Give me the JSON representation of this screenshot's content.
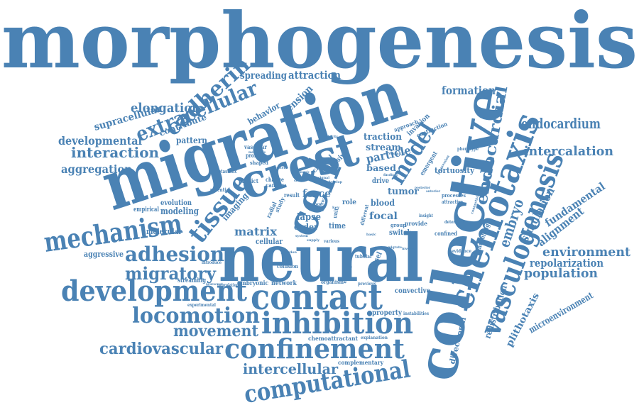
{
  "color": "#4a82b4",
  "words": {
    "morphogenesis": "morphogenesis",
    "migration": "migration",
    "neural": "neural",
    "collective": "collective",
    "crest": "crest",
    "cell": "cell",
    "contact": "contact",
    "development": "development",
    "inhibition": "inhibition",
    "chemotaxis": "chemotaxis",
    "vasculogenesis": "vasculogenesis",
    "confinement": "confinement",
    "computational": "computational",
    "mechanism": "mechanism",
    "tissue": "tissue",
    "extracellular": "extracellular",
    "cadherin": "cadherin",
    "locomotion": "locomotion",
    "adhesion": "adhesion",
    "migratory": "migratory",
    "model": "model",
    "cardiovascular": "cardiovascular",
    "movement": "movement",
    "intercellular": "intercellular",
    "interaction": "interaction",
    "developmental": "developmental",
    "aggregation": "aggregation",
    "elongation": "elongation",
    "supracellular": "supracellular",
    "endocardial": "endocardial",
    "endocardium": "endocardium",
    "intercalation": "intercalation",
    "formation": "formation",
    "environment": "environment",
    "population": "population",
    "repolarization": "repolarization",
    "embryo": "embryo",
    "simulation": "simulation",
    "alignment": "alignment",
    "fundamental": "fundamental",
    "microenvironment": "microenvironment",
    "plithotaxis": "plithotaxis",
    "redistribution": "redistribution",
    "directional": "directional",
    "spreading": "spreading",
    "attraction": "attraction",
    "tension": "tension",
    "behavior": "behavior",
    "contribute": "contribute",
    "pattern": "pattern",
    "matrix": "matrix",
    "modeling": "modeling",
    "evolution": "evolution",
    "empirical": "empirical",
    "molecular": "molecular",
    "aggressive": "aggressive",
    "imaging": "imaging",
    "force": "force",
    "particle": "particle",
    "traction": "traction",
    "stream": "stream",
    "based": "based",
    "drive": "drive",
    "tortuosity": "tortuosity",
    "blood": "blood",
    "focal": "focal",
    "tumor": "tumor",
    "lapse": "lapse",
    "order": "order",
    "time": "time",
    "switch": "switch",
    "convective": "convective",
    "property": "property",
    "chemoattractant": "chemoattractant",
    "complementary": "complementary",
    "streaming": "streaming",
    "embryonic": "embryonic",
    "network": "network",
    "vessel": "vessel",
    "cellular": "cellular",
    "adhesive": "adhesive",
    "cranial": "cranial",
    "invasion": "invasion",
    "contraction": "contraction",
    "approach": "approach",
    "vascular": "vascular",
    "promote": "promote",
    "shaped": "shaped",
    "cancer": "cancer",
    "change": "change",
    "predict": "predict",
    "potential": "potential",
    "metastatic": "metastatic",
    "result": "result",
    "study": "study",
    "radial": "radial",
    "role": "role",
    "emergent": "emergent",
    "modelling": "modelling",
    "confined": "confined",
    "provide": "provide",
    "group": "group",
    "processes": "processes",
    "attractive": "attractive",
    "collision": "collision",
    "organism": "organism",
    "tubular": "tubular",
    "instabilities": "instabilities",
    "explanation": "explanation",
    "experimental": "experimental",
    "introduce": "introduce",
    "phenotype": "phenotype",
    "determine": "determine",
    "evidence": "evidence",
    "insight": "insight",
    "component": "component",
    "exhibit": "exhibit",
    "various": "various",
    "neurulation": "neurulation",
    "previous": "previous",
    "different": "different",
    "unit": "unit",
    "junction": "junction",
    "supply": "supply",
    "finding": "finding",
    "essential": "essential",
    "develop": "develop",
    "velocity": "velocity",
    "signal": "signal",
    "select": "select",
    "range": "range",
    "single": "single",
    "real": "real",
    "posterior": "posterior",
    "progression": "progression",
    "anterior": "anterior",
    "connectivity": "connectivity",
    "dynamic": "dynamic",
    "chapter": "chapter",
    "metastasis": "metastasis",
    "system": "system",
    "key": "key",
    "basic": "basic",
    "involve": "involve",
    "migrate": "migrate",
    "neurocrest": "neurocrest"
  }
}
